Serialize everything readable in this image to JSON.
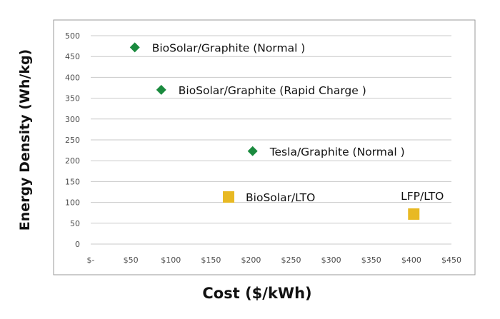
{
  "chart_data": {
    "type": "scatter",
    "xlabel": "Cost ($/kWh)",
    "ylabel": "Energy Density (Wh/kg)",
    "xlim": [
      0,
      450
    ],
    "ylim": [
      0,
      500
    ],
    "x_ticks": [
      0,
      50,
      100,
      150,
      200,
      250,
      300,
      350,
      400,
      450
    ],
    "x_tick_labels": [
      "$-",
      "$50",
      "$100",
      "$150",
      "$200",
      "$250",
      "$300",
      "$350",
      "$400",
      "$450"
    ],
    "y_ticks": [
      0,
      50,
      100,
      150,
      200,
      250,
      300,
      350,
      400,
      450,
      500
    ],
    "y_tick_labels": [
      "0",
      "50",
      "100",
      "150",
      "200",
      "250",
      "300",
      "350",
      "400",
      "450",
      "500"
    ],
    "grid": "horizontal",
    "legend": "none",
    "points": [
      {
        "label": "BioSolar/Graphite (Normal )",
        "x": 55,
        "y": 472,
        "marker": "diamond",
        "color": "#1a8a3e",
        "label_side": "right"
      },
      {
        "label": "BioSolar/Graphite (Rapid Charge )",
        "x": 88,
        "y": 370,
        "marker": "diamond",
        "color": "#1a8a3e",
        "label_side": "right"
      },
      {
        "label": "Tesla/Graphite (Normal )",
        "x": 202,
        "y": 223,
        "marker": "diamond",
        "color": "#1a8a3e",
        "label_side": "right"
      },
      {
        "label": "BioSolar/LTO",
        "x": 172,
        "y": 113,
        "marker": "square",
        "color": "#e8b923",
        "label_side": "right"
      },
      {
        "label": "LFP/LTO",
        "x": 403,
        "y": 72,
        "marker": "square",
        "color": "#e8b923",
        "label_side": "above"
      }
    ]
  }
}
